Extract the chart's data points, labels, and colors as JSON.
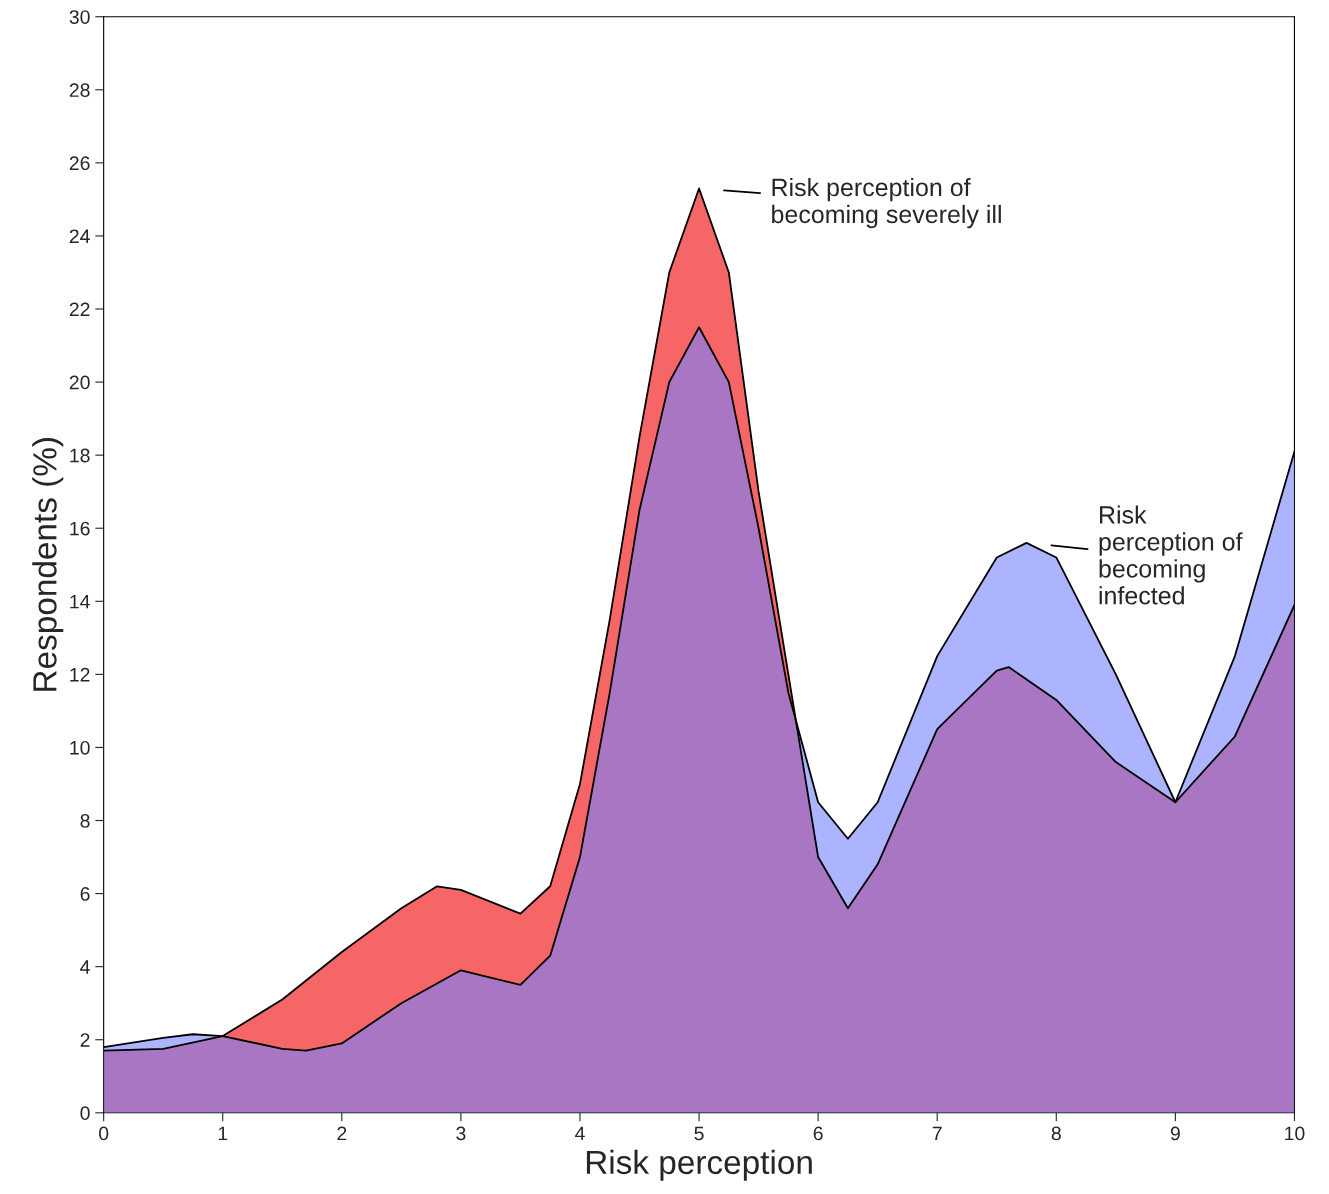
{
  "chart_data": {
    "type": "area",
    "xlabel": "Risk perception",
    "ylabel": "Respondents (%)",
    "xlim": [
      0,
      10
    ],
    "ylim": [
      0,
      30
    ],
    "xticks": [
      0,
      1,
      2,
      3,
      4,
      5,
      6,
      7,
      8,
      9,
      10
    ],
    "yticks": [
      0,
      2,
      4,
      6,
      8,
      10,
      12,
      14,
      16,
      18,
      20,
      22,
      24,
      26,
      28,
      30
    ],
    "grid": false,
    "legend": false,
    "series": [
      {
        "color": "#f00000",
        "x": [
          0,
          0.5,
          1,
          1.5,
          2,
          2.5,
          2.8,
          3,
          3.5,
          3.75,
          4,
          4.25,
          4.5,
          4.75,
          5,
          5.25,
          5.5,
          5.75,
          6,
          6.25,
          6.5,
          7,
          7.5,
          7.6,
          8,
          8.5,
          9,
          9.5,
          10
        ],
        "values": [
          1.7,
          1.75,
          2.1,
          3.1,
          4.4,
          5.6,
          6.2,
          6.1,
          5.45,
          6.2,
          9,
          13.5,
          18.5,
          23,
          25.3,
          23,
          17,
          12,
          7,
          5.6,
          6.8,
          10.5,
          12.1,
          12.2,
          11.3,
          9.6,
          8.5,
          10.3,
          13.9
        ]
      },
      {
        "color": "#7480ff",
        "x": [
          0,
          0.5,
          0.75,
          1,
          1.5,
          1.7,
          2,
          2.5,
          3,
          3.5,
          3.75,
          4,
          4.25,
          4.5,
          4.75,
          5,
          5.25,
          5.5,
          5.75,
          6,
          6.25,
          6.5,
          7,
          7.5,
          7.75,
          8,
          8.5,
          9,
          9.5,
          10
        ],
        "values": [
          1.8,
          2.05,
          2.15,
          2.1,
          1.75,
          1.7,
          1.9,
          3,
          3.9,
          3.5,
          4.3,
          7,
          11.5,
          16.5,
          20,
          21.5,
          20,
          16,
          11.5,
          8.5,
          7.5,
          8.5,
          12.5,
          15.2,
          15.6,
          15.2,
          12,
          8.5,
          12.5,
          18.1
        ]
      }
    ],
    "annotations": [
      {
        "text": "Risk perception of\nbecoming severely ill",
        "x": 5,
        "y": 25.3
      },
      {
        "text": "Risk\nperception of\nbecoming\ninfected",
        "x": 7.75,
        "y": 15.6
      }
    ]
  }
}
